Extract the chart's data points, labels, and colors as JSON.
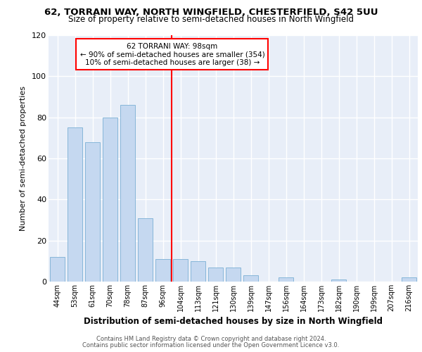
{
  "title": "62, TORRANI WAY, NORTH WINGFIELD, CHESTERFIELD, S42 5UU",
  "subtitle": "Size of property relative to semi-detached houses in North Wingfield",
  "xlabel": "Distribution of semi-detached houses by size in North Wingfield",
  "ylabel": "Number of semi-detached properties",
  "categories": [
    "44sqm",
    "53sqm",
    "61sqm",
    "70sqm",
    "78sqm",
    "87sqm",
    "96sqm",
    "104sqm",
    "113sqm",
    "121sqm",
    "130sqm",
    "139sqm",
    "147sqm",
    "156sqm",
    "164sqm",
    "173sqm",
    "182sqm",
    "190sqm",
    "199sqm",
    "207sqm",
    "216sqm"
  ],
  "values": [
    12,
    75,
    68,
    80,
    86,
    31,
    11,
    11,
    10,
    7,
    7,
    3,
    0,
    2,
    0,
    0,
    1,
    0,
    0,
    0,
    2
  ],
  "bar_color": "#c5d8f0",
  "bar_edge_color": "#7aafd4",
  "annotation_title": "62 TORRANI WAY: 98sqm",
  "annotation_line1": "← 90% of semi-detached houses are smaller (354)",
  "annotation_line2": "10% of semi-detached houses are larger (38) →",
  "red_line_x": 6.5,
  "ylim": [
    0,
    120
  ],
  "yticks": [
    0,
    20,
    40,
    60,
    80,
    100,
    120
  ],
  "background_color": "#e8eef8",
  "grid_color": "#ffffff",
  "footer_line1": "Contains HM Land Registry data © Crown copyright and database right 2024.",
  "footer_line2": "Contains public sector information licensed under the Open Government Licence v3.0."
}
